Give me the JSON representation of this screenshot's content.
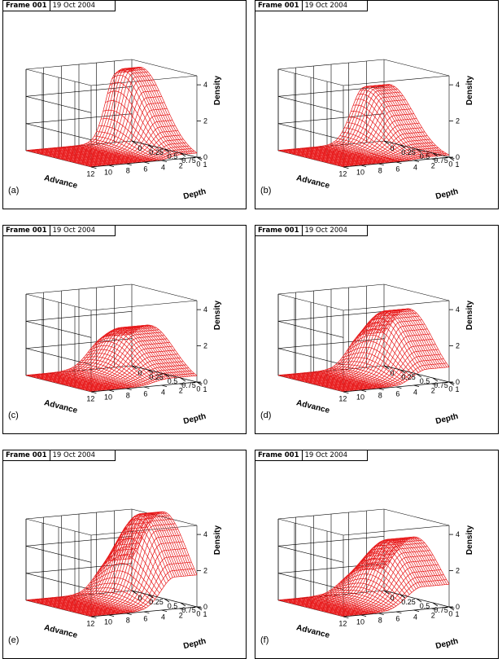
{
  "header": {
    "frame": "Frame 001",
    "date": "19 Oct 2004"
  },
  "chart_data": [
    {
      "type": "surface",
      "label": "(a)",
      "xlabel": "Advance",
      "ylabel": "Depth",
      "zlabel": "Density",
      "x_ticks": [
        "12",
        "10",
        "8",
        "6",
        "4",
        "2",
        "0"
      ],
      "y_ticks": [
        "1",
        "0.75",
        "0.5",
        "0.25",
        "0"
      ],
      "z_ticks": [
        "0",
        "2",
        "4"
      ],
      "xlim": [
        0,
        12
      ],
      "ylim": [
        0,
        1
      ],
      "zlim": [
        0,
        4.5
      ],
      "base_density": 1.0,
      "peak": {
        "advance_from": 0,
        "advance_to": 3.5,
        "max_density": 4.2,
        "depth_at_max": 0.15
      }
    },
    {
      "type": "surface",
      "label": "(b)",
      "xlabel": "Advance",
      "ylabel": "Depth",
      "zlabel": "Density",
      "x_ticks": [
        "12",
        "10",
        "8",
        "6",
        "4",
        "2",
        "0"
      ],
      "y_ticks": [
        "1",
        "0.75",
        "0.5",
        "0.25",
        "0"
      ],
      "z_ticks": [
        "0",
        "2",
        "4"
      ],
      "xlim": [
        0,
        12
      ],
      "ylim": [
        0,
        1
      ],
      "zlim": [
        0,
        4.5
      ],
      "base_density": 1.0,
      "peak": {
        "advance_from": 0,
        "advance_to": 4.5,
        "max_density": 3.2,
        "depth_at_max": 0.1
      }
    },
    {
      "type": "surface",
      "label": "(c)",
      "xlabel": "Advance",
      "ylabel": "Depth",
      "zlabel": "Density",
      "x_ticks": [
        "12",
        "10",
        "8",
        "6",
        "4",
        "2",
        "0"
      ],
      "y_ticks": [
        "1",
        "0.75",
        "0.5",
        "0.25",
        "0"
      ],
      "z_ticks": [
        "0",
        "2",
        "4"
      ],
      "xlim": [
        0,
        12
      ],
      "ylim": [
        0,
        1
      ],
      "zlim": [
        0,
        4.5
      ],
      "base_density": 1.0,
      "peak": {
        "advance_from": 0,
        "advance_to": 6,
        "max_density": 2.5,
        "depth_at_max": 0.3
      }
    },
    {
      "type": "surface",
      "label": "(d)",
      "xlabel": "Advance",
      "ylabel": "Depth",
      "zlabel": "Density",
      "x_ticks": [
        "12",
        "10",
        "8",
        "6",
        "4",
        "2",
        "0"
      ],
      "y_ticks": [
        "1",
        "0.75",
        "0.5",
        "0.25",
        "0"
      ],
      "z_ticks": [
        "0",
        "2",
        "4"
      ],
      "xlim": [
        0,
        12
      ],
      "ylim": [
        0,
        1
      ],
      "zlim": [
        0,
        4.5
      ],
      "base_density": 1.0,
      "peak": {
        "advance_from": 0,
        "advance_to": 5,
        "max_density": 3.5,
        "depth_at_max": 0.4
      }
    },
    {
      "type": "surface",
      "label": "(e)",
      "xlabel": "Advance",
      "ylabel": "Depth",
      "zlabel": "Density",
      "x_ticks": [
        "12",
        "10",
        "8",
        "6",
        "4",
        "2",
        "0"
      ],
      "y_ticks": [
        "1",
        "0.75",
        "0.5",
        "0.25",
        "0"
      ],
      "z_ticks": [
        "0",
        "2",
        "4"
      ],
      "xlim": [
        0,
        12
      ],
      "ylim": [
        0,
        1
      ],
      "zlim": [
        0,
        4.5
      ],
      "base_density": 1.0,
      "peak": {
        "advance_from": 0,
        "advance_to": 5,
        "max_density": 4.8,
        "depth_at_max": 0.5
      }
    },
    {
      "type": "surface",
      "label": "(f)",
      "xlabel": "Advance",
      "ylabel": "Depth",
      "zlabel": "Density",
      "x_ticks": [
        "12",
        "10",
        "8",
        "6",
        "4",
        "2",
        "0"
      ],
      "y_ticks": [
        "1",
        "0.75",
        "0.5",
        "0.25",
        "0"
      ],
      "z_ticks": [
        "0",
        "2",
        "4"
      ],
      "xlim": [
        0,
        12
      ],
      "ylim": [
        0,
        1
      ],
      "zlim": [
        0,
        4.5
      ],
      "base_density": 1.0,
      "peak": {
        "advance_from": 0,
        "advance_to": 6,
        "max_density": 3.4,
        "depth_at_max": 0.5
      }
    }
  ],
  "colors": {
    "surface": "#e8191a",
    "axes": "#000000"
  }
}
